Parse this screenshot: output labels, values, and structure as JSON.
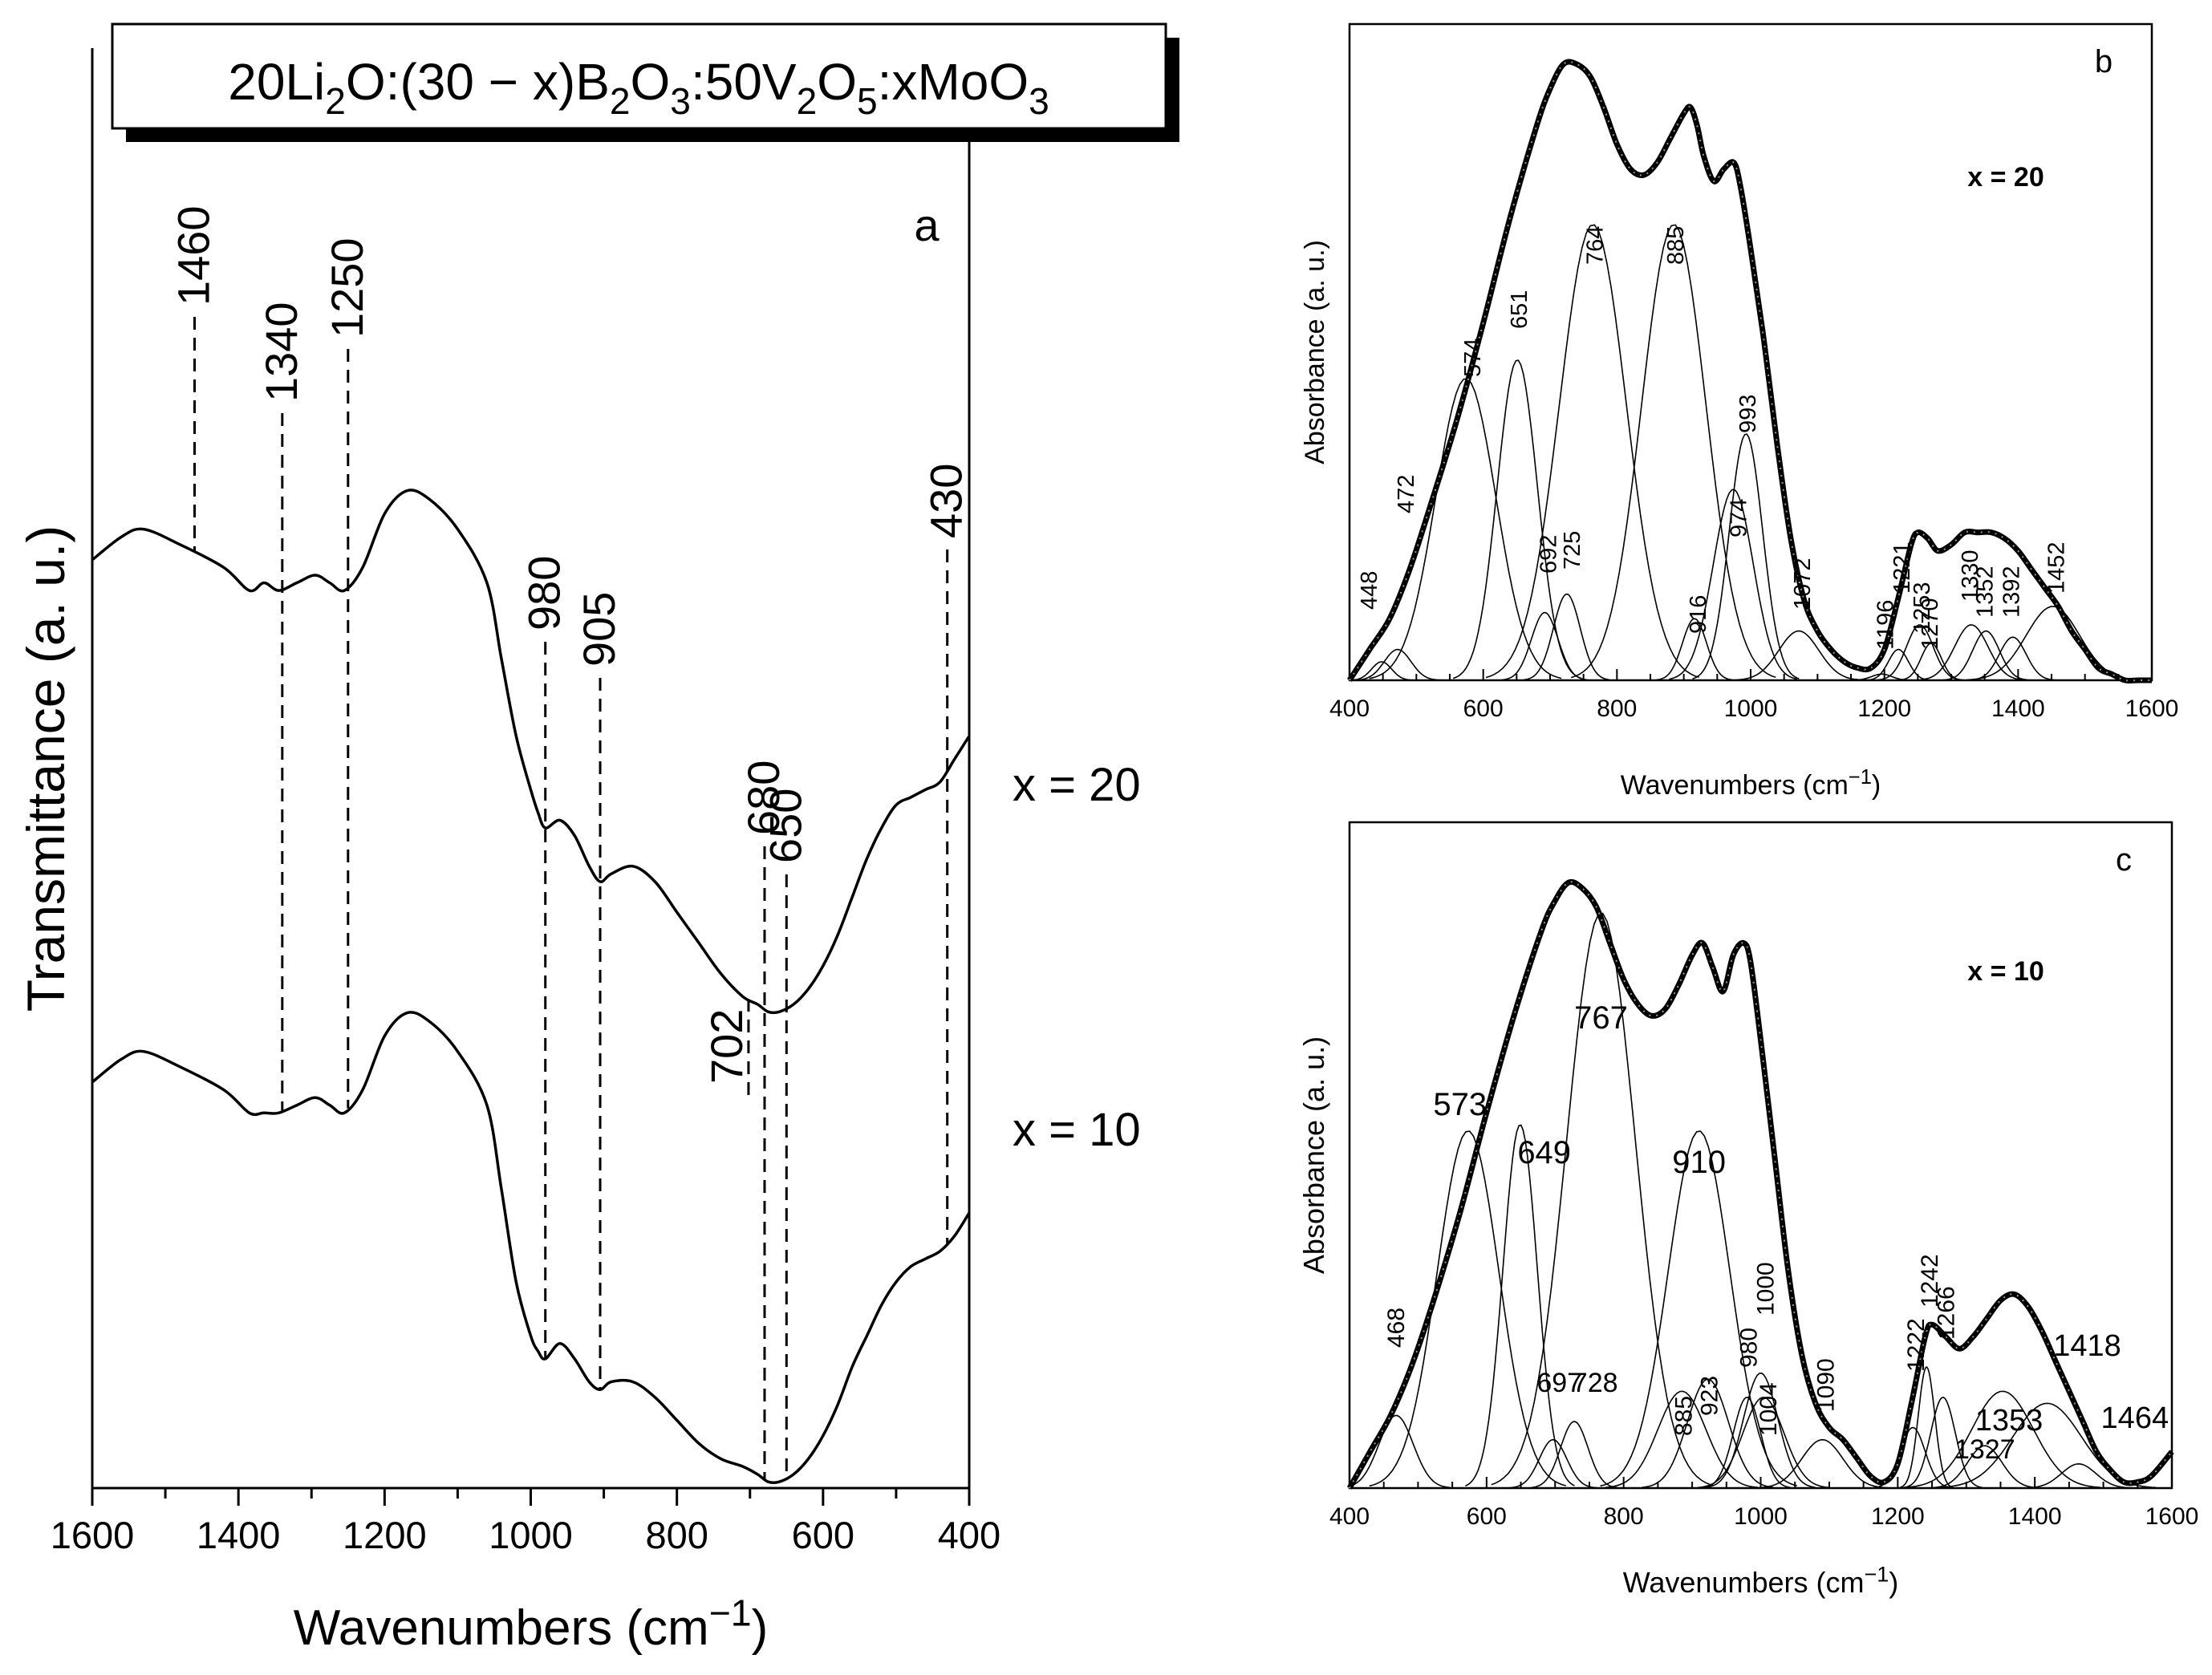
{
  "chart_data": [
    {
      "panel": "a",
      "type": "line",
      "composition": "20Li2O:(30 − x)B2O3:50V2O5:xMoO3",
      "panel_label": "a",
      "xlabel": "Wavenumbers (cm−1)",
      "ylabel": "Transmittance (a. u.)",
      "xlim": [
        1600,
        400
      ],
      "xticks": [
        "1600",
        "1400",
        "1200",
        "1000",
        "800",
        "600",
        "400"
      ],
      "series": [
        {
          "name": "x = 20",
          "x": [
            1600,
            1560,
            1530,
            1480,
            1420,
            1385,
            1365,
            1345,
            1320,
            1295,
            1275,
            1255,
            1230,
            1200,
            1170,
            1140,
            1100,
            1060,
            1040,
            1020,
            1000,
            990,
            980,
            960,
            940,
            920,
            905,
            890,
            860,
            830,
            800,
            770,
            740,
            710,
            690,
            675,
            660,
            640,
            620,
            600,
            580,
            560,
            540,
            520,
            500,
            480,
            460,
            440,
            420,
            400
          ],
          "y": [
            0.73,
            0.76,
            0.77,
            0.75,
            0.72,
            0.69,
            0.7,
            0.69,
            0.7,
            0.71,
            0.7,
            0.69,
            0.72,
            0.79,
            0.82,
            0.81,
            0.77,
            0.7,
            0.6,
            0.5,
            0.43,
            0.4,
            0.38,
            0.39,
            0.37,
            0.33,
            0.31,
            0.32,
            0.33,
            0.31,
            0.27,
            0.23,
            0.19,
            0.16,
            0.15,
            0.14,
            0.14,
            0.15,
            0.17,
            0.2,
            0.24,
            0.29,
            0.34,
            0.38,
            0.41,
            0.42,
            0.43,
            0.44,
            0.47,
            0.5
          ]
        },
        {
          "name": "x = 10",
          "x": [
            1600,
            1560,
            1530,
            1480,
            1420,
            1385,
            1365,
            1345,
            1320,
            1295,
            1275,
            1255,
            1230,
            1200,
            1170,
            1140,
            1100,
            1060,
            1040,
            1020,
            1000,
            990,
            980,
            960,
            940,
            920,
            905,
            890,
            860,
            830,
            800,
            770,
            740,
            710,
            690,
            675,
            660,
            640,
            620,
            600,
            580,
            560,
            540,
            520,
            500,
            480,
            460,
            440,
            420,
            400
          ],
          "y": [
            0.5,
            0.53,
            0.54,
            0.52,
            0.49,
            0.46,
            0.46,
            0.46,
            0.47,
            0.48,
            0.47,
            0.46,
            0.49,
            0.56,
            0.59,
            0.58,
            0.54,
            0.47,
            0.36,
            0.24,
            0.17,
            0.15,
            0.14,
            0.16,
            0.14,
            0.11,
            0.1,
            0.11,
            0.11,
            0.09,
            0.06,
            0.03,
            0.01,
            0.0,
            -0.01,
            -0.02,
            -0.02,
            -0.01,
            0.01,
            0.04,
            0.08,
            0.13,
            0.17,
            0.21,
            0.24,
            0.26,
            0.27,
            0.28,
            0.3,
            0.33
          ]
        }
      ],
      "series_labels": [
        "x = 20",
        "x = 10"
      ],
      "annotations": [
        {
          "label": "1460",
          "x": 1460
        },
        {
          "label": "1340",
          "x": 1340
        },
        {
          "label": "1250",
          "x": 1250
        },
        {
          "label": "980",
          "x": 980
        },
        {
          "label": "905",
          "x": 905
        },
        {
          "label": "702",
          "x": 702
        },
        {
          "label": "680",
          "x": 680
        },
        {
          "label": "650",
          "x": 650
        },
        {
          "label": "430",
          "x": 430
        }
      ]
    },
    {
      "panel": "b",
      "type": "line",
      "panel_label": "b",
      "subtitle": "x = 20",
      "xlabel": "Wavenumbers (cm−1)",
      "ylabel": "Absorbance (a. u.)",
      "xlim": [
        400,
        1600
      ],
      "xticks": [
        "400",
        "600",
        "800",
        "1000",
        "1200",
        "1400",
        "1600"
      ],
      "envelope": {
        "x": [
          400,
          430,
          460,
          490,
          520,
          560,
          600,
          640,
          680,
          700,
          720,
          740,
          760,
          780,
          800,
          820,
          840,
          860,
          880,
          900,
          910,
          920,
          930,
          945,
          960,
          975,
          985,
          1000,
          1020,
          1040,
          1060,
          1080,
          1100,
          1120,
          1140,
          1160,
          1180,
          1200,
          1220,
          1240,
          1250,
          1265,
          1280,
          1300,
          1320,
          1340,
          1360,
          1380,
          1400,
          1420,
          1440,
          1460,
          1480,
          1500,
          1520,
          1540,
          1560,
          1580,
          1600
        ],
        "y": [
          0.0,
          0.05,
          0.1,
          0.18,
          0.28,
          0.42,
          0.58,
          0.75,
          0.9,
          0.96,
          1.0,
          1.0,
          0.98,
          0.93,
          0.87,
          0.83,
          0.82,
          0.84,
          0.88,
          0.92,
          0.93,
          0.9,
          0.85,
          0.81,
          0.83,
          0.84,
          0.8,
          0.7,
          0.55,
          0.38,
          0.23,
          0.13,
          0.08,
          0.05,
          0.03,
          0.02,
          0.02,
          0.05,
          0.13,
          0.22,
          0.24,
          0.23,
          0.21,
          0.22,
          0.24,
          0.24,
          0.24,
          0.23,
          0.21,
          0.18,
          0.15,
          0.12,
          0.08,
          0.05,
          0.02,
          0.01,
          0.0,
          0.0,
          0.0
        ]
      },
      "components": [
        {
          "label": "448",
          "center": 448,
          "height": 0.03,
          "width": 15
        },
        {
          "label": "472",
          "center": 472,
          "height": 0.05,
          "width": 20
        },
        {
          "label": "574",
          "center": 574,
          "height": 0.49,
          "width": 45
        },
        {
          "label": "651",
          "center": 651,
          "height": 0.52,
          "width": 30
        },
        {
          "label": "692",
          "center": 692,
          "height": 0.11,
          "width": 20
        },
        {
          "label": "725",
          "center": 725,
          "height": 0.14,
          "width": 20
        },
        {
          "label": "764",
          "center": 764,
          "height": 0.74,
          "width": 50
        },
        {
          "label": "885",
          "center": 885,
          "height": 0.74,
          "width": 48
        },
        {
          "label": "916",
          "center": 916,
          "height": 0.1,
          "width": 18
        },
        {
          "label": "974",
          "center": 974,
          "height": 0.31,
          "width": 30
        },
        {
          "label": "993",
          "center": 993,
          "height": 0.4,
          "width": 25
        },
        {
          "label": "1072",
          "center": 1072,
          "height": 0.08,
          "width": 30
        },
        {
          "label": "1196",
          "center": 1196,
          "height": 0.01,
          "width": 15
        },
        {
          "label": "1221",
          "center": 1221,
          "height": 0.05,
          "width": 15
        },
        {
          "label": "1253",
          "center": 1253,
          "height": 0.09,
          "width": 20
        },
        {
          "label": "1270",
          "center": 1270,
          "height": 0.06,
          "width": 15
        },
        {
          "label": "1330",
          "center": 1330,
          "height": 0.09,
          "width": 25
        },
        {
          "label": "1352",
          "center": 1352,
          "height": 0.08,
          "width": 20
        },
        {
          "label": "1392",
          "center": 1392,
          "height": 0.07,
          "width": 20
        },
        {
          "label": "1452",
          "center": 1452,
          "height": 0.12,
          "width": 40
        }
      ]
    },
    {
      "panel": "c",
      "type": "line",
      "panel_label": "c",
      "subtitle": "x = 10",
      "xlabel": "Wavenumbers (cm−1)",
      "ylabel": "Absorbance (a. u.)",
      "xlim": [
        400,
        1600
      ],
      "xticks": [
        "400",
        "600",
        "800",
        "1000",
        "1200",
        "1400",
        "1600"
      ],
      "envelope": {
        "x": [
          400,
          430,
          460,
          490,
          520,
          560,
          600,
          640,
          680,
          700,
          720,
          740,
          760,
          780,
          800,
          820,
          840,
          860,
          880,
          900,
          915,
          930,
          945,
          960,
          975,
          985,
          1000,
          1020,
          1040,
          1060,
          1080,
          1100,
          1120,
          1140,
          1160,
          1180,
          1200,
          1220,
          1240,
          1250,
          1270,
          1290,
          1310,
          1330,
          1350,
          1370,
          1390,
          1410,
          1430,
          1450,
          1470,
          1490,
          1510,
          1530,
          1550,
          1570,
          1600
        ],
        "y": [
          0.0,
          0.06,
          0.12,
          0.2,
          0.3,
          0.45,
          0.62,
          0.78,
          0.92,
          0.97,
          1.0,
          0.99,
          0.96,
          0.9,
          0.84,
          0.8,
          0.78,
          0.79,
          0.83,
          0.88,
          0.9,
          0.86,
          0.82,
          0.88,
          0.9,
          0.87,
          0.74,
          0.55,
          0.36,
          0.22,
          0.14,
          0.1,
          0.08,
          0.05,
          0.02,
          0.01,
          0.04,
          0.14,
          0.25,
          0.27,
          0.25,
          0.23,
          0.25,
          0.28,
          0.31,
          0.32,
          0.3,
          0.26,
          0.21,
          0.16,
          0.11,
          0.06,
          0.03,
          0.01,
          0.01,
          0.02,
          0.06
        ]
      },
      "components": [
        {
          "label": "468",
          "center": 468,
          "height": 0.12,
          "width": 25
        },
        {
          "label": "573",
          "center": 573,
          "height": 0.59,
          "width": 45
        },
        {
          "label": "649",
          "center": 649,
          "height": 0.6,
          "width": 25
        },
        {
          "label": "697",
          "center": 697,
          "height": 0.08,
          "width": 20
        },
        {
          "label": "728",
          "center": 728,
          "height": 0.11,
          "width": 20
        },
        {
          "label": "767",
          "center": 767,
          "height": 0.95,
          "width": 50
        },
        {
          "label": "885",
          "center": 885,
          "height": 0.16,
          "width": 35
        },
        {
          "label": "910",
          "center": 910,
          "height": 0.59,
          "width": 45
        },
        {
          "label": "923",
          "center": 923,
          "height": 0.18,
          "width": 30
        },
        {
          "label": "980",
          "center": 980,
          "height": 0.15,
          "width": 20
        },
        {
          "label": "1000",
          "center": 1000,
          "height": 0.19,
          "width": 25
        },
        {
          "label": "1004",
          "center": 1004,
          "height": 0.15,
          "width": 30
        },
        {
          "label": "1090",
          "center": 1090,
          "height": 0.08,
          "width": 30
        },
        {
          "label": "1222",
          "center": 1222,
          "height": 0.1,
          "width": 18
        },
        {
          "label": "1242",
          "center": 1242,
          "height": 0.2,
          "width": 12
        },
        {
          "label": "1266",
          "center": 1266,
          "height": 0.15,
          "width": 18
        },
        {
          "label": "1327",
          "center": 1327,
          "height": 0.07,
          "width": 25
        },
        {
          "label": "1353",
          "center": 1353,
          "height": 0.16,
          "width": 45
        },
        {
          "label": "1418",
          "center": 1418,
          "height": 0.14,
          "width": 50
        },
        {
          "label": "1464",
          "center": 1464,
          "height": 0.04,
          "width": 25
        }
      ]
    }
  ]
}
